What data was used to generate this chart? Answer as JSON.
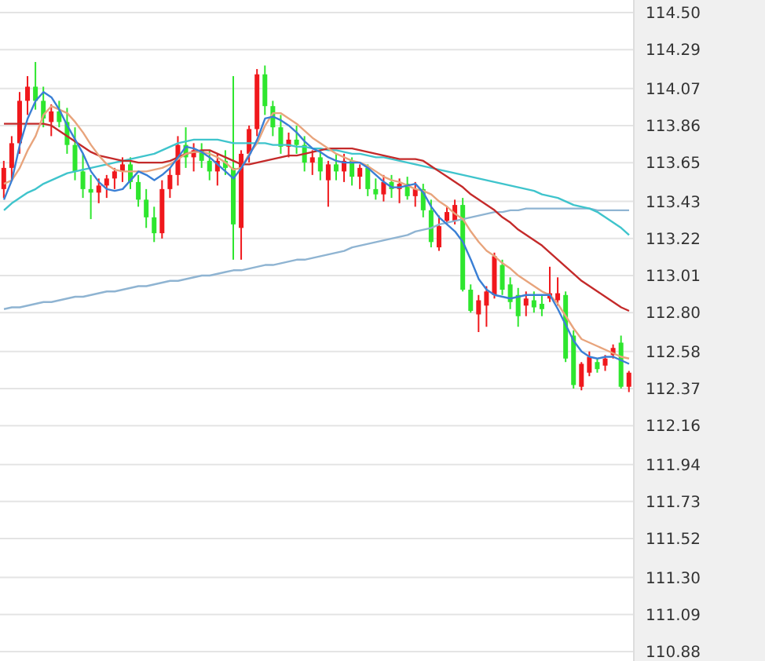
{
  "chart_data": {
    "type": "candlestick",
    "categories": [
      null,
      null,
      null,
      null,
      null,
      null,
      null,
      null,
      null,
      null,
      null,
      null,
      null,
      null,
      null,
      null,
      null,
      null,
      null,
      null,
      null,
      null,
      null,
      null,
      null,
      null,
      null,
      null,
      null,
      null,
      null,
      null,
      null,
      null,
      null,
      null,
      null,
      null,
      null,
      null,
      null,
      null,
      null,
      null,
      null,
      null,
      null,
      null,
      null,
      null,
      null,
      null,
      null,
      null,
      null,
      null,
      null,
      null,
      null,
      null,
      null,
      null,
      null,
      null,
      null,
      null,
      null,
      null,
      null,
      null,
      null,
      null,
      null,
      null,
      null,
      null,
      null,
      null,
      null,
      null
    ],
    "ohlc": [
      [
        113.5,
        113.66,
        113.45,
        113.62
      ],
      [
        113.62,
        113.8,
        113.55,
        113.76
      ],
      [
        113.76,
        114.05,
        113.7,
        114.0
      ],
      [
        114.0,
        114.14,
        113.92,
        114.08
      ],
      [
        114.08,
        114.22,
        113.95,
        114.0
      ],
      [
        114.0,
        114.08,
        113.85,
        113.9
      ],
      [
        113.88,
        113.98,
        113.8,
        113.94
      ],
      [
        113.94,
        114.0,
        113.85,
        113.88
      ],
      [
        113.88,
        113.96,
        113.7,
        113.75
      ],
      [
        113.75,
        113.85,
        113.55,
        113.6
      ],
      [
        113.6,
        113.7,
        113.45,
        113.5
      ],
      [
        113.5,
        113.58,
        113.33,
        113.48
      ],
      [
        113.48,
        113.56,
        113.42,
        113.52
      ],
      [
        113.52,
        113.58,
        113.45,
        113.56
      ],
      [
        113.56,
        113.62,
        113.5,
        113.6
      ],
      [
        113.6,
        113.68,
        113.54,
        113.64
      ],
      [
        113.64,
        113.68,
        113.5,
        113.54
      ],
      [
        113.54,
        113.58,
        113.4,
        113.44
      ],
      [
        113.44,
        113.5,
        113.28,
        113.34
      ],
      [
        113.34,
        113.4,
        113.2,
        113.25
      ],
      [
        113.25,
        113.55,
        113.22,
        113.5
      ],
      [
        113.5,
        113.62,
        113.45,
        113.58
      ],
      [
        113.58,
        113.8,
        113.52,
        113.75
      ],
      [
        113.75,
        113.85,
        113.62,
        113.68
      ],
      [
        113.68,
        113.76,
        113.6,
        113.72
      ],
      [
        113.72,
        113.76,
        113.62,
        113.66
      ],
      [
        113.66,
        113.72,
        113.55,
        113.6
      ],
      [
        113.6,
        113.7,
        113.52,
        113.66
      ],
      [
        113.66,
        113.72,
        113.58,
        113.62
      ],
      [
        113.62,
        114.14,
        113.1,
        113.3
      ],
      [
        113.28,
        113.72,
        113.1,
        113.7
      ],
      [
        113.7,
        113.86,
        113.65,
        113.84
      ],
      [
        113.84,
        114.18,
        113.8,
        114.15
      ],
      [
        114.15,
        114.2,
        113.92,
        113.97
      ],
      [
        113.97,
        114.0,
        113.8,
        113.85
      ],
      [
        113.85,
        113.92,
        113.7,
        113.74
      ],
      [
        113.74,
        113.82,
        113.68,
        113.78
      ],
      [
        113.78,
        113.86,
        113.7,
        113.75
      ],
      [
        113.75,
        113.8,
        113.6,
        113.65
      ],
      [
        113.65,
        113.72,
        113.58,
        113.68
      ],
      [
        113.68,
        113.72,
        113.55,
        113.6
      ],
      [
        113.55,
        113.66,
        113.4,
        113.64
      ],
      [
        113.64,
        113.7,
        113.55,
        113.6
      ],
      [
        113.6,
        113.7,
        113.54,
        113.66
      ],
      [
        113.66,
        113.68,
        113.52,
        113.57
      ],
      [
        113.57,
        113.64,
        113.5,
        113.62
      ],
      [
        113.62,
        113.64,
        113.46,
        113.5
      ],
      [
        113.5,
        113.56,
        113.44,
        113.47
      ],
      [
        113.47,
        113.58,
        113.43,
        113.54
      ],
      [
        113.54,
        113.58,
        113.45,
        113.5
      ],
      [
        113.5,
        113.56,
        113.42,
        113.53
      ],
      [
        113.53,
        113.57,
        113.44,
        113.46
      ],
      [
        113.46,
        113.54,
        113.4,
        113.5
      ],
      [
        113.5,
        113.53,
        113.34,
        113.38
      ],
      [
        113.38,
        113.44,
        113.17,
        113.2
      ],
      [
        113.17,
        113.35,
        113.15,
        113.29
      ],
      [
        113.32,
        113.4,
        113.3,
        113.37
      ],
      [
        113.32,
        113.44,
        113.3,
        113.41
      ],
      [
        113.41,
        113.45,
        112.92,
        112.93
      ],
      [
        112.93,
        112.96,
        112.8,
        112.81
      ],
      [
        112.79,
        112.9,
        112.69,
        112.87
      ],
      [
        112.84,
        112.95,
        112.72,
        112.92
      ],
      [
        112.9,
        113.14,
        112.88,
        113.12
      ],
      [
        113.07,
        113.1,
        112.9,
        112.93
      ],
      [
        112.96,
        113.0,
        112.82,
        112.86
      ],
      [
        112.9,
        112.94,
        112.72,
        112.78
      ],
      [
        112.84,
        112.92,
        112.78,
        112.88
      ],
      [
        112.87,
        112.92,
        112.8,
        112.83
      ],
      [
        112.85,
        112.9,
        112.78,
        112.82
      ],
      [
        112.88,
        113.06,
        112.86,
        112.91
      ],
      [
        112.87,
        113.0,
        112.84,
        112.91
      ],
      [
        112.9,
        112.92,
        112.52,
        112.54
      ],
      [
        112.67,
        112.7,
        112.37,
        112.39
      ],
      [
        112.38,
        112.52,
        112.36,
        112.51
      ],
      [
        112.46,
        112.58,
        112.44,
        112.55
      ],
      [
        112.52,
        112.54,
        112.46,
        112.48
      ],
      [
        112.5,
        112.56,
        112.47,
        112.54
      ],
      [
        112.56,
        112.62,
        112.54,
        112.6
      ],
      [
        112.63,
        112.67,
        112.37,
        112.38
      ],
      [
        112.38,
        112.47,
        112.35,
        112.46
      ]
    ],
    "colors": [
      "#f0181c",
      "#f0181c",
      "#f0181c",
      "#f0181c",
      "#2ee62e",
      "#2ee62e",
      "#f0181c",
      "#2ee62e",
      "#2ee62e",
      "#2ee62e",
      "#2ee62e",
      "#2ee62e",
      "#f0181c",
      "#f0181c",
      "#f0181c",
      "#f0181c",
      "#2ee62e",
      "#2ee62e",
      "#2ee62e",
      "#2ee62e",
      "#f0181c",
      "#f0181c",
      "#f0181c",
      "#2ee62e",
      "#f0181c",
      "#2ee62e",
      "#2ee62e",
      "#f0181c",
      "#2ee62e",
      "#2ee62e",
      "#f0181c",
      "#f0181c",
      "#f0181c",
      "#2ee62e",
      "#2ee62e",
      "#2ee62e",
      "#f0181c",
      "#2ee62e",
      "#2ee62e",
      "#f0181c",
      "#2ee62e",
      "#f0181c",
      "#2ee62e",
      "#f0181c",
      "#2ee62e",
      "#f0181c",
      "#2ee62e",
      "#2ee62e",
      "#f0181c",
      "#2ee62e",
      "#f0181c",
      "#2ee62e",
      "#f0181c",
      "#2ee62e",
      "#2ee62e",
      "#f0181c",
      "#f0181c",
      "#f0181c",
      "#2ee62e",
      "#2ee62e",
      "#f0181c",
      "#f0181c",
      "#f0181c",
      "#2ee62e",
      "#2ee62e",
      "#2ee62e",
      "#f0181c",
      "#2ee62e",
      "#2ee62e",
      "#f0181c",
      "#f0181c",
      "#2ee62e",
      "#2ee62e",
      "#f0181c",
      "#f0181c",
      "#2ee62e",
      "#f0181c",
      "#f0181c",
      "#2ee62e",
      "#f0181c"
    ],
    "series": [
      {
        "type": "line",
        "color": "#8fb4d2",
        "values": [
          112.82,
          112.83,
          112.83,
          112.84,
          112.85,
          112.86,
          112.86,
          112.87,
          112.88,
          112.89,
          112.89,
          112.9,
          112.91,
          112.92,
          112.92,
          112.93,
          112.94,
          112.95,
          112.95,
          112.96,
          112.97,
          112.98,
          112.98,
          112.99,
          113.0,
          113.01,
          113.01,
          113.02,
          113.03,
          113.04,
          113.04,
          113.05,
          113.06,
          113.07,
          113.07,
          113.08,
          113.09,
          113.1,
          113.1,
          113.11,
          113.12,
          113.13,
          113.14,
          113.15,
          113.17,
          113.18,
          113.19,
          113.2,
          113.21,
          113.22,
          113.23,
          113.24,
          113.26,
          113.27,
          113.28,
          113.3,
          113.31,
          113.32,
          113.33,
          113.34,
          113.35,
          113.36,
          113.37,
          113.37,
          113.38,
          113.38,
          113.39,
          113.39,
          113.39,
          113.39,
          113.39,
          113.39,
          113.39,
          113.39,
          113.39,
          113.38,
          113.38,
          113.38,
          113.38,
          113.38
        ]
      },
      {
        "type": "line",
        "color": "#3fc4cc",
        "values": [
          113.38,
          113.42,
          113.45,
          113.48,
          113.5,
          113.53,
          113.55,
          113.57,
          113.59,
          113.6,
          113.61,
          113.62,
          113.63,
          113.64,
          113.65,
          113.66,
          113.67,
          113.68,
          113.69,
          113.7,
          113.72,
          113.74,
          113.76,
          113.77,
          113.78,
          113.78,
          113.78,
          113.78,
          113.77,
          113.76,
          113.76,
          113.76,
          113.76,
          113.76,
          113.75,
          113.75,
          113.75,
          113.74,
          113.74,
          113.73,
          113.73,
          113.72,
          113.72,
          113.71,
          113.7,
          113.7,
          113.69,
          113.68,
          113.68,
          113.67,
          113.66,
          113.65,
          113.64,
          113.63,
          113.62,
          113.61,
          113.6,
          113.59,
          113.58,
          113.57,
          113.56,
          113.55,
          113.54,
          113.53,
          113.52,
          113.51,
          113.5,
          113.49,
          113.47,
          113.46,
          113.45,
          113.43,
          113.41,
          113.4,
          113.39,
          113.37,
          113.34,
          113.31,
          113.28,
          113.24
        ]
      },
      {
        "type": "line",
        "color": "#c42a2a",
        "values": [
          113.87,
          113.87,
          113.87,
          113.87,
          113.87,
          113.87,
          113.86,
          113.83,
          113.8,
          113.77,
          113.74,
          113.71,
          113.69,
          113.68,
          113.67,
          113.66,
          113.66,
          113.65,
          113.65,
          113.65,
          113.65,
          113.66,
          113.68,
          113.7,
          113.71,
          113.72,
          113.72,
          113.7,
          113.68,
          113.66,
          113.64,
          113.64,
          113.65,
          113.66,
          113.67,
          113.68,
          113.69,
          113.69,
          113.7,
          113.71,
          113.72,
          113.73,
          113.73,
          113.73,
          113.73,
          113.72,
          113.71,
          113.7,
          113.69,
          113.68,
          113.67,
          113.67,
          113.67,
          113.66,
          113.63,
          113.6,
          113.57,
          113.54,
          113.51,
          113.47,
          113.44,
          113.41,
          113.38,
          113.34,
          113.31,
          113.27,
          113.24,
          113.21,
          113.18,
          113.14,
          113.1,
          113.06,
          113.02,
          112.98,
          112.95,
          112.92,
          112.89,
          112.86,
          112.83,
          112.81
        ]
      },
      {
        "type": "line",
        "color": "#e8a47c",
        "values": [
          113.53,
          113.55,
          113.62,
          113.72,
          113.8,
          113.92,
          113.97,
          113.95,
          113.93,
          113.88,
          113.82,
          113.75,
          113.69,
          113.64,
          113.61,
          113.6,
          113.6,
          113.6,
          113.6,
          113.61,
          113.62,
          113.64,
          113.67,
          113.7,
          113.71,
          113.71,
          113.7,
          113.68,
          113.65,
          113.61,
          113.62,
          113.7,
          113.76,
          113.86,
          113.93,
          113.93,
          113.9,
          113.87,
          113.83,
          113.79,
          113.76,
          113.73,
          113.7,
          113.68,
          113.66,
          113.65,
          113.63,
          113.6,
          113.57,
          113.55,
          113.54,
          113.52,
          113.5,
          113.49,
          113.47,
          113.43,
          113.4,
          113.36,
          113.33,
          113.26,
          113.2,
          113.15,
          113.12,
          113.08,
          113.05,
          113.01,
          112.98,
          112.95,
          112.92,
          112.9,
          112.85,
          112.78,
          112.71,
          112.65,
          112.63,
          112.61,
          112.59,
          112.57,
          112.55,
          112.54
        ]
      },
      {
        "type": "line",
        "color": "#3a7fd5",
        "values": [
          113.44,
          113.55,
          113.75,
          113.9,
          114.0,
          114.05,
          114.02,
          113.95,
          113.86,
          113.78,
          113.7,
          113.6,
          113.54,
          113.5,
          113.49,
          113.5,
          113.55,
          113.6,
          113.58,
          113.55,
          113.58,
          113.62,
          113.68,
          113.74,
          113.73,
          113.71,
          113.68,
          113.64,
          113.6,
          113.56,
          113.62,
          113.69,
          113.78,
          113.9,
          113.91,
          113.89,
          113.86,
          113.82,
          113.77,
          113.73,
          113.71,
          113.68,
          113.66,
          113.65,
          113.65,
          113.65,
          113.62,
          113.58,
          113.54,
          113.51,
          113.51,
          113.52,
          113.53,
          113.48,
          113.4,
          113.34,
          113.3,
          113.26,
          113.2,
          113.1,
          112.99,
          112.93,
          112.9,
          112.89,
          112.88,
          112.89,
          112.9,
          112.9,
          112.9,
          112.9,
          112.82,
          112.73,
          112.64,
          112.58,
          112.55,
          112.54,
          112.55,
          112.55,
          112.53,
          112.51
        ]
      }
    ],
    "ylim": [
      110.88,
      114.5
    ],
    "yticks": [
      {
        "value": 110.88,
        "label": "110.88"
      },
      {
        "value": 111.09,
        "label": "111.09"
      },
      {
        "value": 111.3,
        "label": "111.30"
      },
      {
        "value": 111.52,
        "label": "111.52"
      },
      {
        "value": 111.73,
        "label": "111.73"
      },
      {
        "value": 111.94,
        "label": "111.94"
      },
      {
        "value": 112.16,
        "label": "112.16"
      },
      {
        "value": 112.37,
        "label": "112.37"
      },
      {
        "value": 112.58,
        "label": "112.58"
      },
      {
        "value": 112.8,
        "label": "112.80"
      },
      {
        "value": 113.01,
        "label": "113.01"
      },
      {
        "value": 113.22,
        "label": "113.22"
      },
      {
        "value": 113.43,
        "label": "113.43"
      },
      {
        "value": 113.65,
        "label": "113.65"
      },
      {
        "value": 113.86,
        "label": "113.86"
      },
      {
        "value": 114.07,
        "label": "114.07"
      },
      {
        "value": 114.29,
        "label": "114.29"
      },
      {
        "value": 114.5,
        "label": "114.50"
      }
    ],
    "grid": "y",
    "tick_labels": "y"
  }
}
